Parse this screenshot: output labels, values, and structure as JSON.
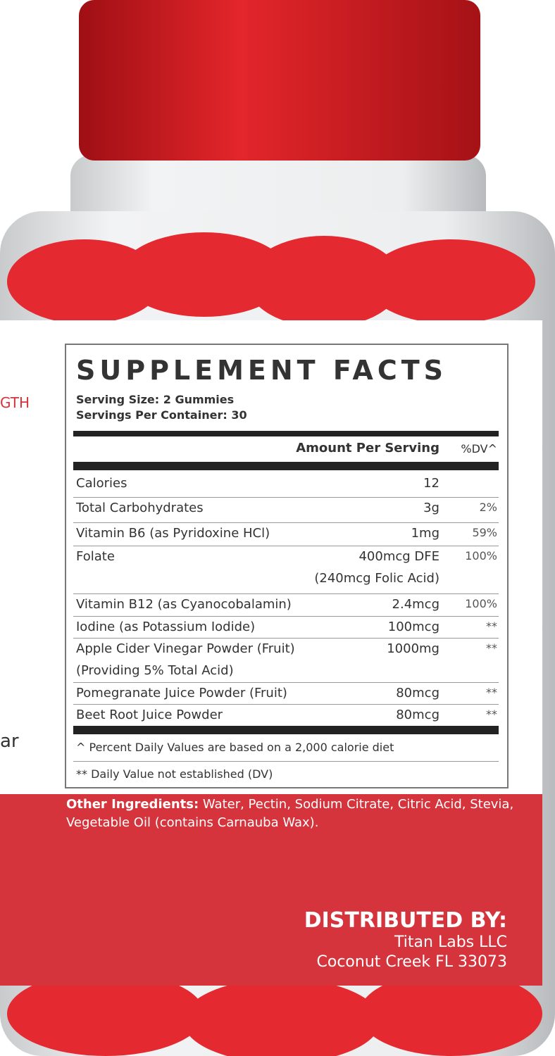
{
  "side_text": [
    "GTH",
    "ar"
  ],
  "facts": {
    "title": "SUPPLEMENT FACTS",
    "serving_size": "Serving Size: 2 Gummies",
    "servings_per_container": "Servings Per Container: 30",
    "header": {
      "amount": "Amount Per Serving",
      "dv": "%DV^"
    },
    "rows": [
      {
        "name": "Calories",
        "amount": "12"
      },
      {
        "name": "Total Carbohydrates",
        "amount": "3g",
        "dv": "2%"
      },
      {
        "name": "Vitamin B6 (as Pyridoxine HCl)",
        "amount": "1mg",
        "dv": "59%"
      },
      {
        "name": "Folate",
        "amount": "400mcg DFE",
        "amount_note": "(240mcg Folic Acid)",
        "dv": "100%"
      },
      {
        "name": "Vitamin B12 (as Cyanocobalamin)",
        "amount": "2.4mcg",
        "dv": "100%"
      },
      {
        "name": "Iodine (as Potassium Iodide)",
        "amount": "100mcg",
        "dv": "**"
      },
      {
        "name": "Apple Cider Vinegar Powder (Fruit)",
        "name_note": "(Providing 5% Total Acid)",
        "amount": "1000mg",
        "dv": "**"
      },
      {
        "name": "Pomegranate Juice Powder (Fruit)",
        "amount": "80mcg",
        "dv": "**"
      },
      {
        "name": "Beet Root Juice Powder",
        "amount": "80mcg",
        "dv": "**"
      }
    ],
    "footnotes": [
      "^ Percent Daily Values are based on a 2,000 calorie diet",
      "** Daily Value not established (DV)"
    ]
  },
  "other_ingredients": {
    "label": "Other Ingredients:",
    "text": "Water, Pectin, Sodium Citrate, Citric Acid, Stevia, Vegetable Oil (contains Carnauba Wax)."
  },
  "distributor": {
    "heading": "DISTRIBUTED BY:",
    "name": "Titan Labs LLC",
    "address": "Coconut Creek FL 33073"
  }
}
